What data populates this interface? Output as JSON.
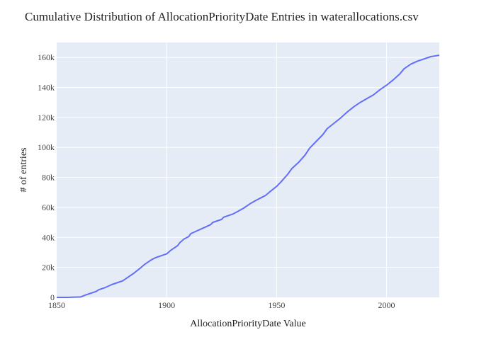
{
  "chart_data": {
    "type": "line",
    "title": "Cumulative Distribution of AllocationPriorityDate Entries in waterallocations.csv",
    "xlabel": "AllocationPriorityDate Value",
    "ylabel": "# of entries",
    "xlim": [
      1850,
      2024
    ],
    "ylim": [
      0,
      170000
    ],
    "x_ticks": [
      1850,
      1900,
      1950,
      2000
    ],
    "y_ticks": [
      0,
      20000,
      40000,
      60000,
      80000,
      100000,
      120000,
      140000,
      160000
    ],
    "y_tick_labels": [
      "0",
      "20k",
      "40k",
      "60k",
      "80k",
      "100k",
      "120k",
      "140k",
      "160k"
    ],
    "grid": true,
    "colors": {
      "plot_background": "#e5ecf6",
      "grid": "#ffffff",
      "line": "#636efa"
    },
    "series": [
      {
        "x": [
          1850,
          1855,
          1861,
          1863,
          1866,
          1868,
          1869,
          1872,
          1875,
          1877,
          1880,
          1882,
          1885,
          1888,
          1890,
          1893,
          1895,
          1898,
          1900,
          1902,
          1905,
          1906,
          1908,
          1910,
          1911,
          1914,
          1917,
          1920,
          1921,
          1923,
          1925,
          1926,
          1928,
          1930,
          1932,
          1935,
          1938,
          1941,
          1943,
          1945,
          1947,
          1950,
          1952,
          1955,
          1957,
          1960,
          1963,
          1965,
          1968,
          1971,
          1973,
          1976,
          1979,
          1982,
          1985,
          1988,
          1991,
          1994,
          1997,
          2000,
          2003,
          2006,
          2008,
          2011,
          2014,
          2017,
          2020,
          2022,
          2024
        ],
        "y": [
          0,
          0,
          300,
          1500,
          3000,
          4000,
          5000,
          6500,
          8500,
          9500,
          11000,
          13000,
          16000,
          19500,
          22000,
          25000,
          26500,
          28000,
          29000,
          31500,
          34500,
          36500,
          39000,
          40500,
          42500,
          44500,
          46500,
          48500,
          50000,
          51000,
          52000,
          53500,
          54500,
          55500,
          57000,
          59500,
          62500,
          65000,
          66500,
          68000,
          70500,
          74000,
          77000,
          82000,
          86000,
          90000,
          95000,
          99500,
          104000,
          108500,
          112500,
          116000,
          119500,
          123500,
          127000,
          130000,
          132500,
          135000,
          138500,
          141500,
          145000,
          149000,
          152500,
          155500,
          157500,
          159000,
          160500,
          161000,
          161500
        ]
      }
    ]
  }
}
